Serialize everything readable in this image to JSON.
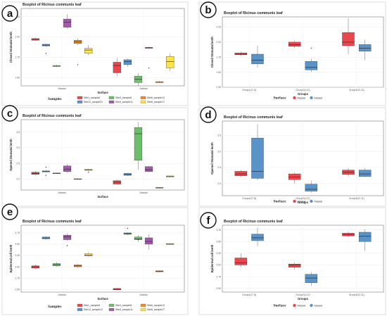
{
  "chart_data": [
    {
      "id": "a",
      "type": "box",
      "title": "Boxplot of Ricinus communis leaf",
      "xlabel": "Surface",
      "ylabel": "Closed Stomatal lenth",
      "categories": [
        "Abaxial",
        "Adaxial"
      ],
      "ylim": [
        1.4,
        2.35
      ],
      "yticks": [
        "1.50",
        "1.75",
        "2.00",
        "2.25"
      ],
      "grid": true,
      "legend": {
        "title": "Samples",
        "placement": "bottom",
        "items": [
          {
            "name": "Site1_sample6",
            "color": "#e8474c"
          },
          {
            "name": "Site10_sample22",
            "color": "#5a93c8"
          },
          {
            "name": "Site3_sample8",
            "color": "#6dbe6b"
          },
          {
            "name": "Site4_sample11",
            "color": "#a05ba8"
          },
          {
            "name": "Site6_sample12",
            "color": "#f08c2d"
          },
          {
            "name": "Site8_sample17",
            "color": "#ffe34d"
          }
        ]
      },
      "series": [
        {
          "name": "Site1_sample6",
          "boxes": [
            [
              1.95,
              1.96,
              1.97,
              1.98,
              1.99
            ],
            [
              1.52,
              1.56,
              1.65,
              1.69,
              1.74
            ]
          ]
        },
        {
          "name": "Site10_sample22",
          "boxes": [
            [
              1.88,
              1.89,
              1.9,
              1.91,
              1.92
            ],
            [
              1.63,
              1.66,
              1.7,
              1.72,
              1.74
            ]
          ]
        },
        {
          "name": "Site3_sample8",
          "boxes": [
            [
              1.63,
              1.64,
              1.64,
              1.65,
              1.66
            ],
            [
              1.4,
              1.44,
              1.48,
              1.52,
              1.56
            ]
          ]
        },
        {
          "name": "Site4_sample11",
          "boxes": [
            [
              2.1,
              2.12,
              2.18,
              2.22,
              2.28
            ],
            [
              1.86,
              1.86,
              1.87,
              1.87,
              1.88
            ]
          ]
        },
        {
          "name": "Site6_sample12",
          "boxes": [
            [
              1.9,
              1.92,
              1.94,
              1.96,
              1.98
            ],
            [
              1.44,
              1.44,
              1.45,
              1.45,
              1.46
            ]
          ]
        },
        {
          "name": "Site8_sample17",
          "boxes": [
            [
              1.78,
              1.8,
              1.84,
              1.86,
              1.9
            ],
            [
              1.58,
              1.62,
              1.7,
              1.76,
              1.8
            ]
          ]
        }
      ],
      "outliers": [
        [
          0,
          1,
          1.8
        ],
        [
          0,
          4,
          1.66
        ],
        [
          1,
          3,
          1.62
        ]
      ]
    },
    {
      "id": "b",
      "type": "box",
      "title": "Boxplot of Ricinus communis leaf",
      "xlabel": "Groups",
      "ylabel": "Closed Stomatal lenth",
      "categories": [
        "Group1(17,6)",
        "Group2(4,12)",
        "Group3(22,11)"
      ],
      "ylim": [
        1.25,
        2.42
      ],
      "yticks": [
        "1.25",
        "1.50",
        "1.75",
        "2.00",
        "2.25"
      ],
      "grid": true,
      "legend": {
        "title": "Surface",
        "placement": "bottom",
        "items": [
          {
            "name": "Abaxial",
            "color": "#e8474c"
          },
          {
            "name": "Adaxial",
            "color": "#5a93c8"
          }
        ]
      },
      "series": [
        {
          "name": "Abaxial",
          "boxes": [
            [
              1.77,
              1.79,
              1.8,
              1.82,
              1.84
            ],
            [
              1.9,
              1.93,
              1.96,
              2.0,
              2.03
            ],
            [
              1.8,
              1.94,
              2.0,
              2.16,
              2.4
            ]
          ]
        },
        {
          "name": "Adaxial",
          "boxes": [
            [
              1.58,
              1.64,
              1.7,
              1.8,
              1.94
            ],
            [
              1.5,
              1.54,
              1.58,
              1.68,
              1.73
            ],
            [
              1.7,
              1.85,
              1.9,
              1.96,
              2.04
            ]
          ]
        }
      ],
      "outliers": [
        [
          1,
          1,
          1.9
        ]
      ]
    },
    {
      "id": "c",
      "type": "box",
      "title": "Boxplot of Ricinus communis leaf",
      "xlabel": "Surface",
      "ylabel": "Opened Stomatal lenth",
      "categories": [
        "Abaxial",
        "Adaxial"
      ],
      "ylim": [
        1.65,
        3.9
      ],
      "yticks": [
        "2.0",
        "2.5",
        "3.0",
        "3.5"
      ],
      "grid": true,
      "legend": {
        "title": "Samples",
        "placement": "bottom",
        "items": [
          {
            "name": "Site1_sample6",
            "color": "#e8474c"
          },
          {
            "name": "Site10_sample22",
            "color": "#5a93c8"
          },
          {
            "name": "Site3_sample8",
            "color": "#6dbe6b"
          },
          {
            "name": "Site4_sample11",
            "color": "#a05ba8"
          },
          {
            "name": "Site6_sample12",
            "color": "#f08c2d"
          },
          {
            "name": "Site8_sample17",
            "color": "#ffe34d"
          }
        ]
      },
      "series": [
        {
          "name": "Site1_sample6",
          "boxes": [
            [
              2.12,
              2.15,
              2.18,
              2.22,
              2.26
            ],
            [
              1.82,
              1.84,
              1.9,
              1.95,
              1.98
            ]
          ]
        },
        {
          "name": "Site10_sample22",
          "boxes": [
            [
              2.22,
              2.23,
              2.24,
              2.26,
              2.28
            ],
            [
              2.1,
              2.12,
              2.15,
              2.18,
              2.2
            ]
          ]
        },
        {
          "name": "Site3_sample8",
          "boxes": [
            [
              2.18,
              2.18,
              2.19,
              2.19,
              2.2
            ],
            [
              2.3,
              2.6,
              3.45,
              3.65,
              3.82
            ]
          ]
        },
        {
          "name": "Site4_sample11",
          "boxes": [
            [
              2.2,
              2.24,
              2.32,
              2.42,
              2.48
            ],
            [
              2.22,
              2.24,
              2.3,
              2.4,
              2.42
            ]
          ]
        },
        {
          "name": "Site6_sample12",
          "boxes": [
            [
              1.98,
              1.99,
              2.0,
              2.01,
              2.02
            ],
            [
              1.7,
              1.71,
              1.72,
              1.73,
              1.74
            ]
          ]
        },
        {
          "name": "Site8_sample17",
          "boxes": [
            [
              2.26,
              2.28,
              2.3,
              2.31,
              2.32
            ],
            [
              2.06,
              2.07,
              2.08,
              2.1,
              2.12
            ]
          ]
        }
      ],
      "outliers": [
        [
          0,
          1,
          2.38
        ],
        [
          0,
          1,
          2.12
        ],
        [
          0,
          5,
          2.22
        ]
      ]
    },
    {
      "id": "d",
      "type": "box",
      "title": "Boxplot of Ricinus communis leaf",
      "xlabel": "Groups",
      "ylabel": "Opened Stomatal lenth",
      "categories": [
        "Group1(17,6)",
        "Group2(4,12)",
        "Group3(22,11)"
      ],
      "ylim": [
        1.62,
        3.95
      ],
      "yticks": [
        "2.0",
        "2.5",
        "3.0",
        "3.5"
      ],
      "grid": true,
      "legend": {
        "title": "Surface",
        "placement": "bottom",
        "items": [
          {
            "name": "Abaxial",
            "color": "#e8474c"
          },
          {
            "name": "Adaxial",
            "color": "#5a93c8"
          }
        ]
      },
      "series": [
        {
          "name": "Abaxial",
          "boxes": [
            [
              2.2,
              2.24,
              2.3,
              2.38,
              2.42
            ],
            [
              2.0,
              2.12,
              2.2,
              2.3,
              2.34
            ],
            [
              2.22,
              2.28,
              2.35,
              2.42,
              2.48
            ]
          ]
        },
        {
          "name": "Adaxial",
          "boxes": [
            [
              2.1,
              2.16,
              2.38,
              3.42,
              3.85
            ],
            [
              1.72,
              1.76,
              1.82,
              1.98,
              2.08
            ],
            [
              2.2,
              2.22,
              2.3,
              2.42,
              2.48
            ]
          ]
        }
      ],
      "outliers": []
    },
    {
      "id": "e",
      "type": "box",
      "title": "Boxplot of Ricinus communis leaf",
      "xlabel": "Surface",
      "ylabel": "Epidermal cell lenth",
      "categories": [
        "Abaxial",
        "Adaxial"
      ],
      "ylim": [
        2.44,
        3.92
      ],
      "yticks": [
        "2.50",
        "2.75",
        "3.00",
        "3.25",
        "3.50",
        "3.75"
      ],
      "grid": true,
      "legend": {
        "title": "Samples",
        "placement": "bottom",
        "items": [
          {
            "name": "Site1_sample6",
            "color": "#e8474c"
          },
          {
            "name": "Site10_sample22",
            "color": "#5a93c8"
          },
          {
            "name": "Site3_sample8",
            "color": "#6dbe6b"
          },
          {
            "name": "Site4_sample11",
            "color": "#a05ba8"
          },
          {
            "name": "Site6_sample12",
            "color": "#f08c2d"
          },
          {
            "name": "Site8_sample17",
            "color": "#ffe34d"
          }
        ]
      },
      "series": [
        {
          "name": "Site1_sample6",
          "boxes": [
            [
              2.95,
              2.97,
              3.0,
              3.02,
              3.05
            ],
            [
              2.48,
              2.49,
              2.5,
              2.52,
              2.53
            ]
          ]
        },
        {
          "name": "Site10_sample22",
          "boxes": [
            [
              3.6,
              3.62,
              3.63,
              3.66,
              3.68
            ],
            [
              3.7,
              3.72,
              3.73,
              3.75,
              3.76
            ]
          ]
        },
        {
          "name": "Site3_sample8",
          "boxes": [
            [
              3.0,
              3.02,
              3.05,
              3.07,
              3.1
            ],
            [
              3.55,
              3.6,
              3.62,
              3.66,
              3.7
            ]
          ]
        },
        {
          "name": "Site4_sample11",
          "boxes": [
            [
              3.58,
              3.6,
              3.66,
              3.7,
              3.74
            ],
            [
              3.38,
              3.5,
              3.56,
              3.64,
              3.72
            ]
          ]
        },
        {
          "name": "Site6_sample12",
          "boxes": [
            [
              2.98,
              3.0,
              3.02,
              3.04,
              3.06
            ],
            [
              2.88,
              2.89,
              2.9,
              2.91,
              2.92
            ]
          ]
        },
        {
          "name": "Site8_sample17",
          "boxes": [
            [
              3.22,
              3.24,
              3.26,
              3.29,
              3.32
            ],
            [
              3.49,
              3.5,
              3.5,
              3.51,
              3.52
            ]
          ]
        }
      ],
      "outliers": [
        [
          0,
          3,
          3.47
        ],
        [
          1,
          1,
          3.85
        ],
        [
          1,
          2,
          3.6
        ]
      ]
    },
    {
      "id": "f",
      "type": "box",
      "title": "Boxplot of Ricinus communis leaf",
      "xlabel": "Groups",
      "ylabel": "Epidermal cell lenth",
      "categories": [
        "Group1(17,6)",
        "Group2(4,12)",
        "Group3(22,11)"
      ],
      "ylim": [
        2.42,
        3.85
      ],
      "yticks": [
        "2.50",
        "2.75",
        "3.00",
        "3.25",
        "3.50",
        "3.75"
      ],
      "grid": true,
      "legend": {
        "title": "Surface",
        "placement": "bottom",
        "items": [
          {
            "name": "Abaxial",
            "color": "#e8474c"
          },
          {
            "name": "Adaxial",
            "color": "#5a93c8"
          }
        ]
      },
      "series": [
        {
          "name": "Abaxial",
          "boxes": [
            [
              2.95,
              3.0,
              3.05,
              3.15,
              3.25
            ],
            [
              2.9,
              2.95,
              3.0,
              3.02,
              3.06
            ],
            [
              3.6,
              3.62,
              3.65,
              3.68,
              3.72
            ]
          ]
        },
        {
          "name": "Adaxial",
          "boxes": [
            [
              3.4,
              3.52,
              3.58,
              3.66,
              3.8
            ],
            [
              2.55,
              2.62,
              2.72,
              2.8,
              2.85
            ],
            [
              3.3,
              3.5,
              3.62,
              3.7,
              3.76
            ]
          ]
        }
      ],
      "outliers": []
    }
  ]
}
